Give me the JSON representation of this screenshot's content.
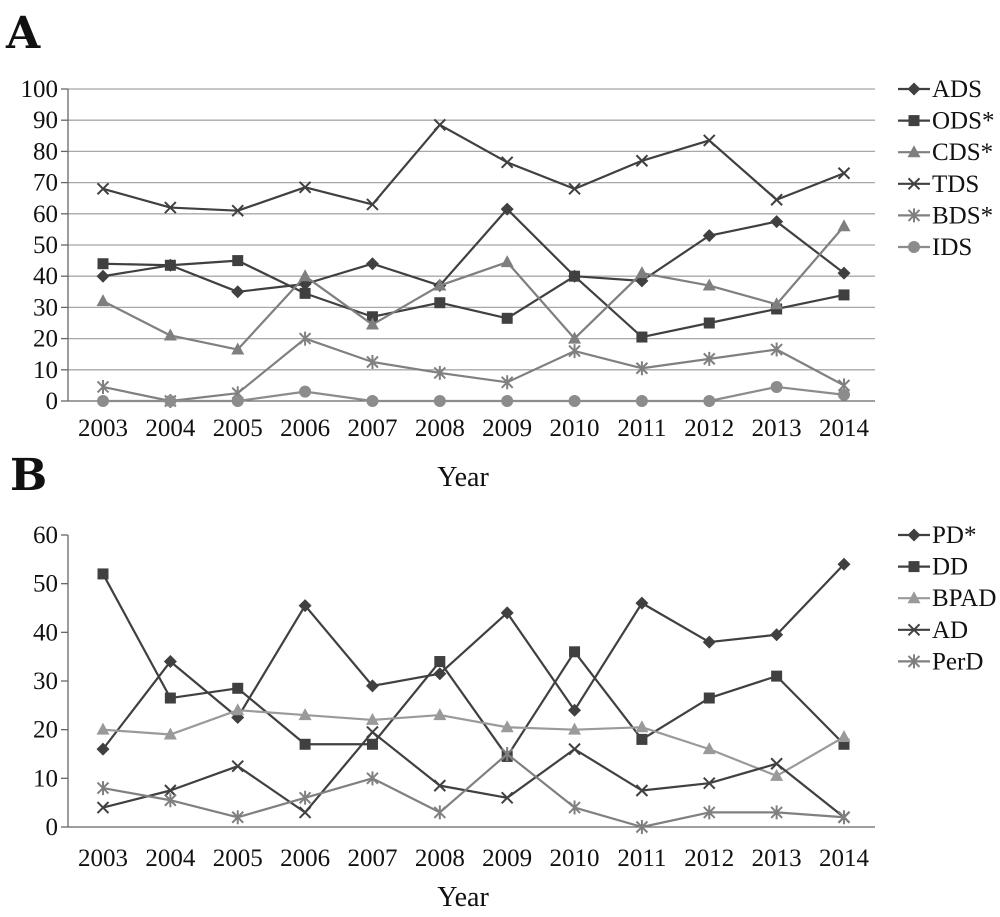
{
  "chart_data": [
    {
      "type": "line",
      "panel_label": "A",
      "xlabel": "Year",
      "ylabel": "",
      "categories": [
        "2003",
        "2004",
        "2005",
        "2006",
        "2007",
        "2008",
        "2009",
        "2010",
        "2011",
        "2012",
        "2013",
        "2014"
      ],
      "ylim": [
        0,
        100
      ],
      "yticks": [
        0,
        10,
        20,
        30,
        40,
        50,
        60,
        70,
        80,
        90,
        100
      ],
      "grid": true,
      "legend_position": "right",
      "series": [
        {
          "name": "ADS",
          "marker": "diamond",
          "color": "#404040",
          "values": [
            40,
            43.5,
            35,
            37.5,
            44,
            37,
            61.5,
            40,
            38.5,
            53,
            57.5,
            41
          ]
        },
        {
          "name": "ODS*",
          "marker": "square",
          "color": "#404040",
          "values": [
            44,
            43.5,
            45,
            34.5,
            27,
            31.5,
            26.5,
            40,
            20.5,
            25,
            29.5,
            34
          ]
        },
        {
          "name": "CDS*",
          "marker": "triangle",
          "color": "#7f7f7f",
          "values": [
            32,
            21,
            16.5,
            40,
            24.5,
            37,
            44.5,
            20,
            41,
            37,
            31,
            56
          ]
        },
        {
          "name": "TDS",
          "marker": "x",
          "color": "#404040",
          "values": [
            68,
            62,
            61,
            68.5,
            63,
            88.5,
            76.5,
            68,
            77,
            83.5,
            64.5,
            73
          ]
        },
        {
          "name": "BDS*",
          "marker": "star",
          "color": "#808080",
          "values": [
            4.5,
            0,
            2.5,
            20,
            12.5,
            9,
            6,
            16,
            10.5,
            13.5,
            16.5,
            5
          ]
        },
        {
          "name": "IDS",
          "marker": "circle",
          "color": "#8c8c8c",
          "values": [
            0,
            0,
            0,
            3,
            0,
            0,
            0,
            0,
            0,
            0,
            4.5,
            2
          ]
        }
      ]
    },
    {
      "type": "line",
      "panel_label": "B",
      "xlabel": "Year",
      "ylabel": "",
      "categories": [
        "2003",
        "2004",
        "2005",
        "2006",
        "2007",
        "2008",
        "2009",
        "2010",
        "2011",
        "2012",
        "2013",
        "2014"
      ],
      "ylim": [
        0,
        60
      ],
      "yticks": [
        0,
        10,
        20,
        30,
        40,
        50,
        60
      ],
      "grid": false,
      "legend_position": "right",
      "series": [
        {
          "name": "PD*",
          "marker": "diamond",
          "color": "#404040",
          "values": [
            16,
            34,
            22.5,
            45.5,
            29,
            31.5,
            44,
            24,
            46,
            38,
            39.5,
            54
          ]
        },
        {
          "name": "DD",
          "marker": "square",
          "color": "#404040",
          "values": [
            52,
            26.5,
            28.5,
            17,
            17,
            34,
            14.5,
            36,
            18,
            26.5,
            31,
            17
          ]
        },
        {
          "name": "BPAD",
          "marker": "triangle",
          "color": "#9a9a9a",
          "values": [
            20,
            19,
            24,
            23,
            22,
            23,
            20.5,
            20,
            20.5,
            16,
            10.5,
            18.5
          ]
        },
        {
          "name": "AD",
          "marker": "x",
          "color": "#404040",
          "values": [
            4,
            7.5,
            12.5,
            3,
            19.5,
            8.5,
            6,
            16,
            7.5,
            9,
            13,
            2
          ]
        },
        {
          "name": "PerD",
          "marker": "star",
          "color": "#808080",
          "values": [
            8,
            5.5,
            2,
            6,
            10,
            3,
            15,
            4,
            0,
            3,
            3,
            2
          ]
        }
      ]
    }
  ]
}
